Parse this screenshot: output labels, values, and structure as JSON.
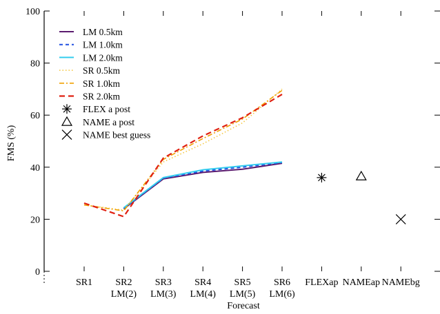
{
  "chart_data": {
    "type": "line",
    "xlabel": "Forecast",
    "ylabel": "FMS (%)",
    "ylim": [
      0,
      100
    ],
    "yticks": [
      0,
      20,
      40,
      60,
      80,
      100
    ],
    "categories": [
      [
        "SR1"
      ],
      [
        "SR2",
        "LM(2)"
      ],
      [
        "SR3",
        "LM(3)"
      ],
      [
        "SR4",
        "LM(4)"
      ],
      [
        "SR5",
        "LM(5)"
      ],
      [
        "SR6",
        "LM(6)"
      ],
      [
        "FLEXap"
      ],
      [
        "NAMEap"
      ],
      [
        "NAMEbg"
      ]
    ],
    "legend_position": "top-left",
    "series": [
      {
        "name": "LM 0.5km",
        "color": "#5a1a6e",
        "dash": "",
        "width": 2,
        "points": [
          [
            1,
            24.0
          ],
          [
            2,
            35.5
          ],
          [
            3,
            38.0
          ],
          [
            4,
            39.2
          ],
          [
            5,
            41.5
          ]
        ]
      },
      {
        "name": "LM 1.0km",
        "color": "#1f4fe0",
        "dash": "5,4",
        "width": 2,
        "points": [
          [
            1,
            24.2
          ],
          [
            2,
            35.8
          ],
          [
            3,
            38.5
          ],
          [
            4,
            40.0
          ],
          [
            5,
            41.8
          ]
        ]
      },
      {
        "name": "LM 2.0km",
        "color": "#33ccee",
        "dash": "",
        "width": 2,
        "points": [
          [
            1,
            24.4
          ],
          [
            2,
            36.0
          ],
          [
            3,
            39.0
          ],
          [
            4,
            40.5
          ],
          [
            5,
            42.0
          ]
        ]
      },
      {
        "name": "SR 0.5km",
        "color": "#f5c842",
        "dash": "1.5,3",
        "width": 1.6,
        "points": [
          [
            0,
            25.5
          ],
          [
            1,
            23.5
          ],
          [
            2,
            42.0
          ],
          [
            3,
            49.0
          ],
          [
            4,
            57.0
          ],
          [
            5,
            70.0
          ]
        ]
      },
      {
        "name": "SR 1.0km",
        "color": "#f0a000",
        "dash": "7,3,2,3",
        "width": 1.6,
        "points": [
          [
            0,
            25.5
          ],
          [
            1,
            23.2
          ],
          [
            2,
            43.0
          ],
          [
            3,
            51.0
          ],
          [
            4,
            58.5
          ],
          [
            5,
            69.5
          ]
        ]
      },
      {
        "name": "SR 2.0km",
        "color": "#e02010",
        "dash": "8,5",
        "width": 2.2,
        "points": [
          [
            0,
            26.2
          ],
          [
            1,
            21.0
          ],
          [
            2,
            43.5
          ],
          [
            3,
            52.0
          ],
          [
            4,
            59.0
          ],
          [
            5,
            68.0
          ]
        ]
      }
    ],
    "markers": [
      {
        "name": "FLEX a post",
        "symbol": "asterisk",
        "category": 6,
        "value": 36.0
      },
      {
        "name": "NAME a post",
        "symbol": "triangle",
        "category": 7,
        "value": 36.5
      },
      {
        "name": "NAME best guess",
        "symbol": "cross",
        "category": 8,
        "value": 20.0
      }
    ]
  }
}
